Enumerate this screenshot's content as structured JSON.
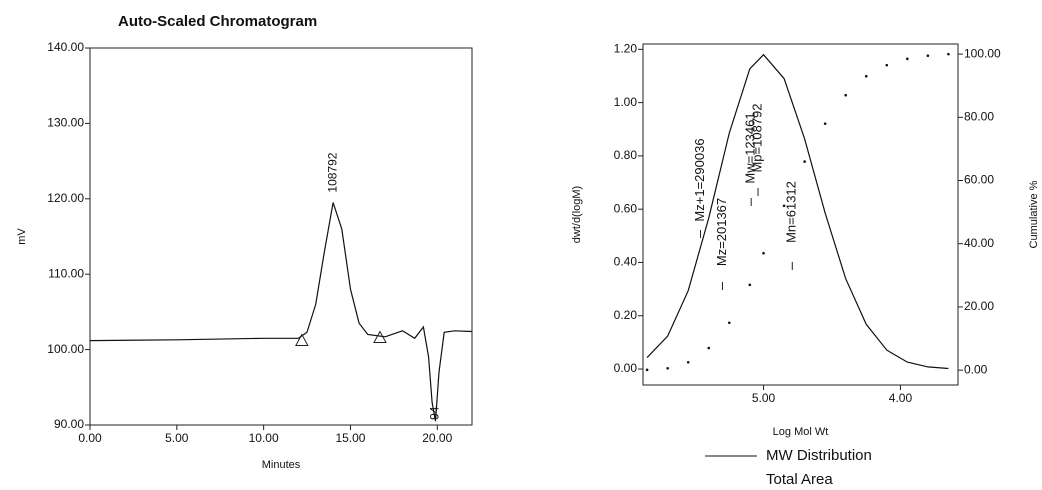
{
  "chart_data": [
    {
      "type": "line",
      "title": "Auto-Scaled Chromatogram",
      "x_label": "Minutes",
      "y_label": "mV",
      "xlim": [
        0,
        22
      ],
      "ylim": [
        90,
        140
      ],
      "xticks": [
        {
          "value": 0,
          "label": "0.00"
        },
        {
          "value": 5,
          "label": "5.00"
        },
        {
          "value": 10,
          "label": "10.00"
        },
        {
          "value": 15,
          "label": "15.00"
        },
        {
          "value": 20,
          "label": "20.00"
        }
      ],
      "yticks": [
        {
          "value": 90,
          "label": "90.00"
        },
        {
          "value": 100,
          "label": "100.00"
        },
        {
          "value": 110,
          "label": "110.00"
        },
        {
          "value": 120,
          "label": "120.00"
        },
        {
          "value": 130,
          "label": "130.00"
        },
        {
          "value": 140,
          "label": "140.00"
        }
      ],
      "x": [
        0,
        5,
        10,
        12,
        12.5,
        13,
        13.5,
        14,
        14.5,
        15,
        15.5,
        16,
        17,
        18,
        18.7,
        19.2,
        19.5,
        19.7,
        19.9,
        20.1,
        20.4,
        21,
        22
      ],
      "series": [
        {
          "color": "#111111",
          "values": [
            101.2,
            101.3,
            101.5,
            101.5,
            102.3,
            106,
            113,
            119.5,
            116,
            108,
            103.5,
            102,
            101.7,
            102.5,
            101.5,
            103,
            99,
            93,
            90.5,
            97,
            102.3,
            102.5,
            102.4
          ]
        }
      ],
      "peak_labels": [
        {
          "text": "108792",
          "x": 14,
          "y": 119.5
        },
        {
          "text": "94",
          "x": 19.9,
          "y": 90.5
        }
      ],
      "markers": {
        "x": [
          12.2,
          16.7
        ],
        "y": [
          101.2,
          101.6
        ]
      }
    },
    {
      "type": "line",
      "x_label": "Log Mol Wt",
      "y_label": "dwt/d(logM)",
      "y2_label": "Cumulative %",
      "xlim": [
        5.88,
        3.58
      ],
      "ylim": [
        -0.06,
        1.22
      ],
      "y2lim": [
        -4.7,
        103.2
      ],
      "xticks": [
        {
          "value": 5,
          "label": "5.00"
        },
        {
          "value": 4,
          "label": "4.00"
        }
      ],
      "yticks": [
        {
          "value": 0,
          "label": "0.00"
        },
        {
          "value": 0.2,
          "label": "0.20"
        },
        {
          "value": 0.4,
          "label": "0.40"
        },
        {
          "value": 0.6,
          "label": "0.60"
        },
        {
          "value": 0.8,
          "label": "0.80"
        },
        {
          "value": 1,
          "label": "1.00"
        },
        {
          "value": 1.2,
          "label": "1.20"
        }
      ],
      "y2ticks": [
        {
          "value": 0,
          "label": "0.00"
        },
        {
          "value": 20,
          "label": "20.00"
        },
        {
          "value": 40,
          "label": "40.00"
        },
        {
          "value": 60,
          "label": "60.00"
        },
        {
          "value": 80,
          "label": "80.00"
        },
        {
          "value": 100,
          "label": "100.00"
        }
      ],
      "x": [
        5.85,
        5.7,
        5.55,
        5.4,
        5.25,
        5.1,
        5.0,
        4.85,
        4.7,
        4.55,
        4.4,
        4.25,
        4.1,
        3.95,
        3.8,
        3.65
      ],
      "series": [
        {
          "name": "MW Distribution",
          "color": "#111111",
          "values": [
            0.043,
            0.124,
            0.294,
            0.566,
            0.886,
            1.127,
            1.18,
            1.09,
            0.864,
            0.585,
            0.339,
            0.168,
            0.071,
            0.026,
            0.008,
            0.002
          ]
        },
        {
          "color": "#111111",
          "axis": "y2",
          "dotted": true,
          "values": [
            0.1,
            0.6,
            2.5,
            7,
            15,
            27,
            37,
            52,
            66,
            78,
            87,
            93,
            96.5,
            98.5,
            99.5,
            100
          ]
        }
      ],
      "annotations": [
        {
          "text": "Mz+1=290036",
          "x": 5.46
        },
        {
          "text": "Mz=201367",
          "x": 5.3
        },
        {
          "text": "Mw=123461",
          "x": 5.09
        },
        {
          "text": "Mp=108792",
          "x": 5.04
        },
        {
          "text": "Mn=61312",
          "x": 4.79
        }
      ],
      "legend_note": "Total Area"
    }
  ]
}
